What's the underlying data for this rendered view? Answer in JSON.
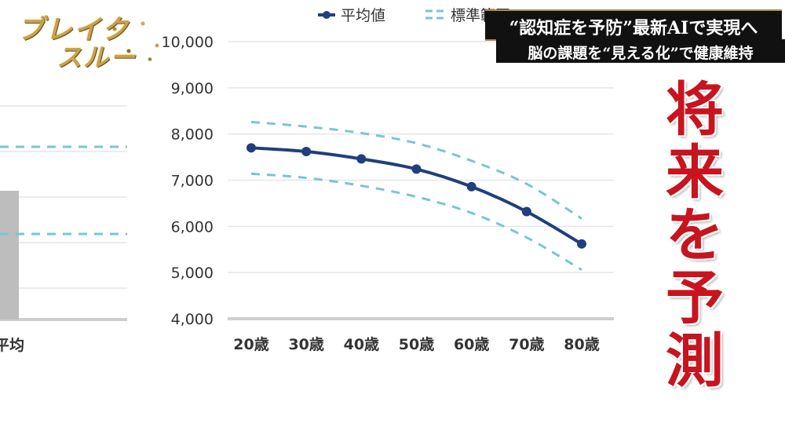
{
  "logo": {
    "line1": "ブレイク",
    "line2": "スルー"
  },
  "headline": {
    "line1": "“認知症を予防”最新AIで実現へ",
    "line2": "脳の課題を“見える化”で健康維持"
  },
  "caption": {
    "chars": [
      "将",
      "来",
      "を",
      "予",
      "測"
    ]
  },
  "left_panel": {
    "category_label": "平均"
  },
  "colors": {
    "mean": "#1f3f7e",
    "band": "#79c6cf",
    "bar": "#bdbdbd",
    "grid": "#e6e6e6",
    "caption": "#c8141e"
  },
  "chart_data": {
    "type": "line",
    "legend": [
      {
        "name": "平均値",
        "style": "solid-dot"
      },
      {
        "name": "標準範囲",
        "style": "dashed"
      }
    ],
    "legend_position": "top",
    "categories": [
      "20歳",
      "30歳",
      "40歳",
      "50歳",
      "60歳",
      "70歳",
      "80歳"
    ],
    "yticks": [
      "4,000",
      "5,000",
      "6,000",
      "7,000",
      "8,000",
      "9,000",
      "10,000"
    ],
    "ylim": [
      4000,
      10000
    ],
    "grid": true,
    "series": [
      {
        "name": "平均値",
        "values": [
          7700,
          7620,
          7460,
          7240,
          6860,
          6320,
          5620
        ]
      },
      {
        "name": "標準範囲",
        "band": "upper",
        "values": [
          8260,
          8160,
          8020,
          7800,
          7420,
          6920,
          6170
        ]
      },
      {
        "name": "標準範囲",
        "band": "lower",
        "values": [
          7140,
          7050,
          6880,
          6640,
          6290,
          5760,
          5060
        ]
      }
    ]
  }
}
